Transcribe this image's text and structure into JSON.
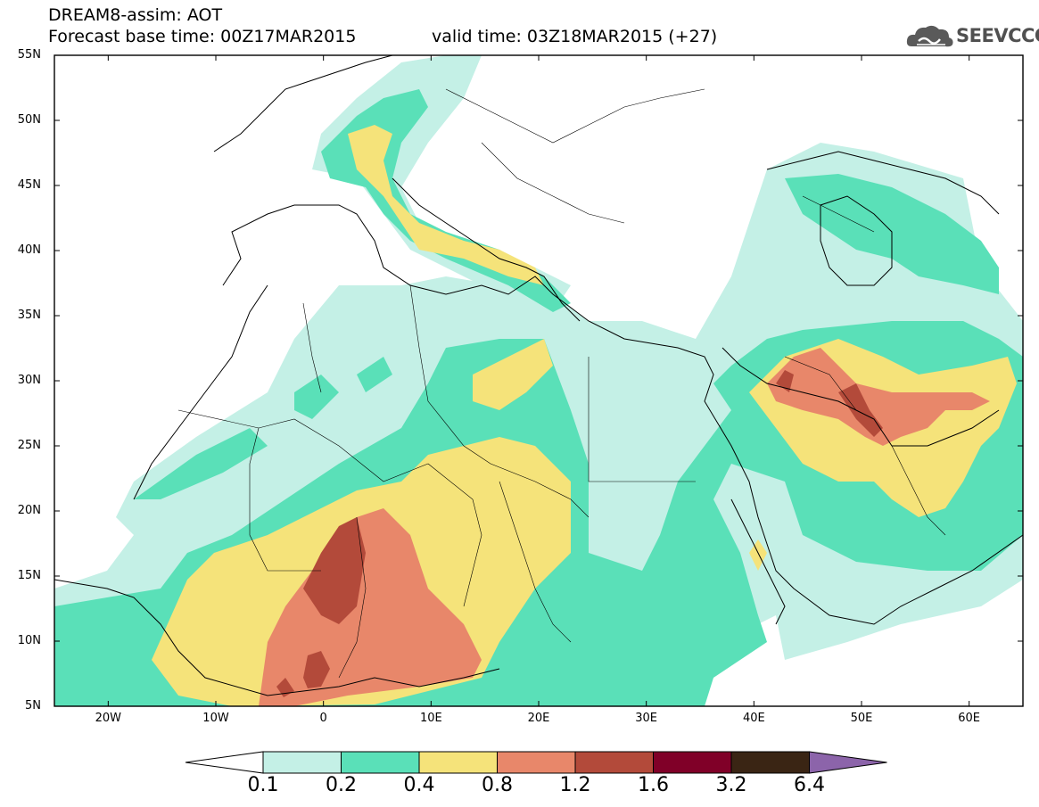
{
  "title": {
    "line1": "DREAM8-assim: AOT",
    "line2": "Forecast base time: 00Z17MAR2015",
    "line3": "valid time: 03Z18MAR2015 (+27)"
  },
  "logo": {
    "text": "SEEVCCC",
    "icon": "cloud-icon"
  },
  "map": {
    "lat_labels": [
      "55N",
      "50N",
      "45N",
      "40N",
      "35N",
      "30N",
      "25N",
      "20N",
      "15N",
      "10N",
      "5N"
    ],
    "lon_labels": [
      "20W",
      "10W",
      "0",
      "10E",
      "20E",
      "30E",
      "40E",
      "50E",
      "60E"
    ],
    "lon_range": [
      -25,
      65
    ],
    "lat_range": [
      5,
      55
    ]
  },
  "colorbar": {
    "labels": [
      "0.1",
      "0.2",
      "0.4",
      "0.8",
      "1.2",
      "1.6",
      "3.2",
      "6.4"
    ],
    "colors": [
      "#ffffff",
      "#c4f0e6",
      "#5ae0b8",
      "#f5e37a",
      "#e8876a",
      "#b34a3a",
      "#800028",
      "#3a2514",
      "#8c64aa"
    ]
  }
}
